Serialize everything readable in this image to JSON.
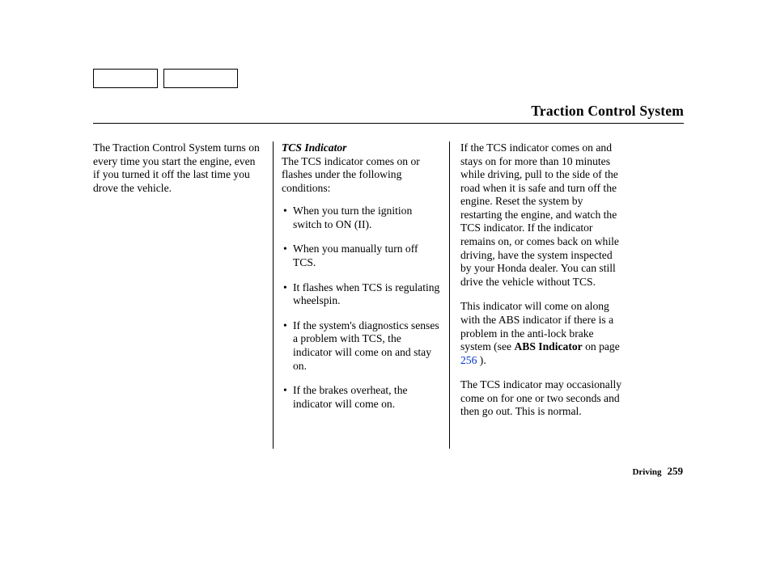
{
  "header": {
    "title": "Traction Control System"
  },
  "col1": {
    "p1": "The Traction Control System turns on every time you start the engine, even if you turned it off the last time you drove the vehicle."
  },
  "col2": {
    "subhead": "TCS Indicator",
    "intro": "The TCS indicator comes on or flashes under the following conditions:",
    "b1": "When you turn the ignition switch to ON (II).",
    "b2": "When you manually turn off TCS.",
    "b3": "It flashes when TCS is regulating wheelspin.",
    "b4": "If the system's diagnostics senses a problem with TCS, the indicator will come on and stay on.",
    "b5": "If the brakes overheat, the indicator will come on."
  },
  "col3": {
    "p1": "If the TCS indicator comes on and stays on for more than 10 minutes while driving, pull to the side of the road when it is safe and turn off the engine. Reset the system by restarting the engine, and watch the TCS indicator. If the indicator remains on, or comes back on while driving, have the system inspected by your Honda dealer. You can still drive the vehicle without TCS.",
    "p2a": "This indicator will come on along with the ABS indicator if there is a problem in the anti-lock brake system (see ",
    "p2bold": "ABS Indicator",
    "p2b": " on page ",
    "p2link": "256",
    "p2c": " ).",
    "p3": "The TCS indicator may occasionally come on for one or two seconds and then go out. This is normal."
  },
  "footer": {
    "section": "Driving",
    "page": "259"
  },
  "style": {
    "link_color": "#0033cc",
    "text_color": "#000000",
    "background": "#ffffff",
    "body_fontsize": 13.6,
    "title_fontsize": 17.5
  }
}
